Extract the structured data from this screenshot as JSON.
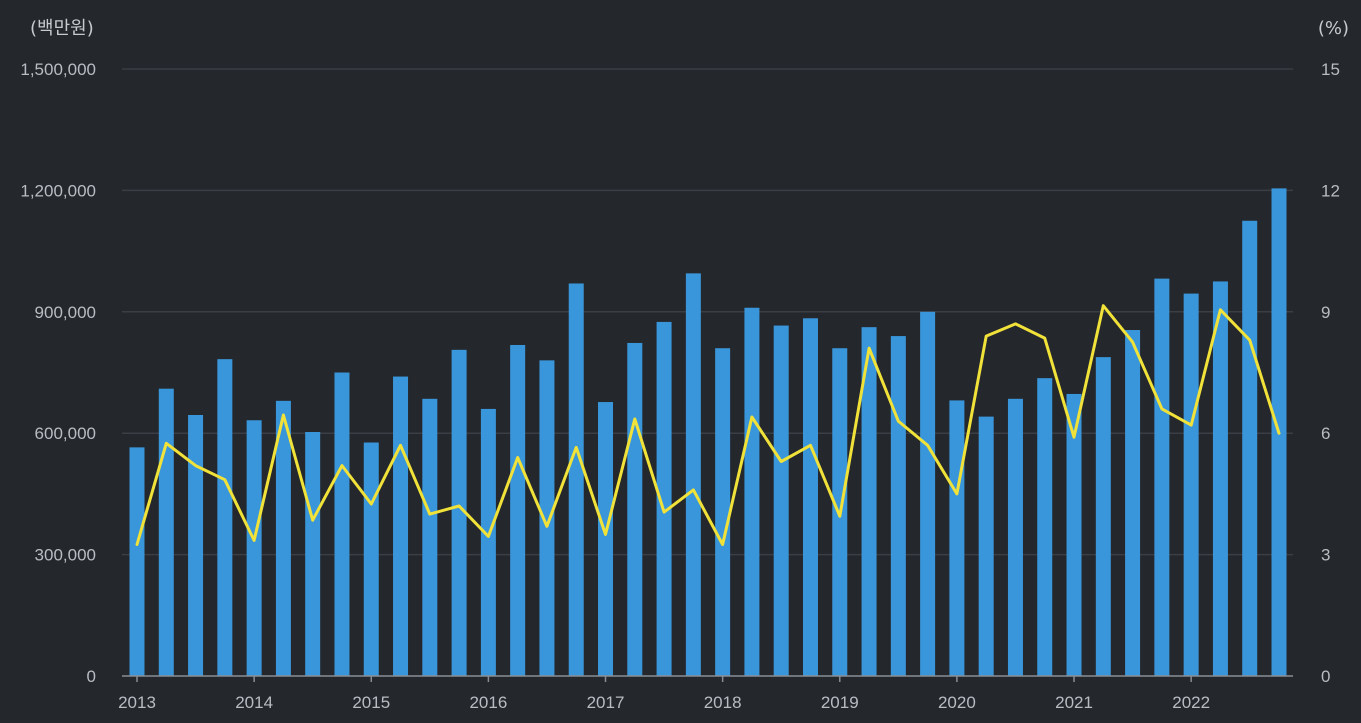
{
  "chart_data": {
    "type": "bar",
    "left_axis_unit": "(백만원)",
    "right_axis_unit": "(%)",
    "y_left_ticks": [
      "0",
      "300,000",
      "600,000",
      "900,000",
      "1,200,000",
      "1,500,000"
    ],
    "y_right_ticks": [
      "0",
      "3",
      "6",
      "9",
      "12",
      "15"
    ],
    "ylim_left": [
      0,
      1500000
    ],
    "ylim_right": [
      0,
      15
    ],
    "x_tick_labels": [
      "2013",
      "2014",
      "2015",
      "2016",
      "2017",
      "2018",
      "2019",
      "2020",
      "2021",
      "2022"
    ],
    "grid": true,
    "series": [
      {
        "type": "bar",
        "axis": "left",
        "color": "#3a96da",
        "values": [
          565000,
          710000,
          645000,
          783000,
          632000,
          680000,
          603000,
          750000,
          577000,
          740000,
          685000,
          806000,
          660000,
          818000,
          780000,
          970000,
          677000,
          823000,
          875000,
          995000,
          810000,
          910000,
          866000,
          884000,
          810000,
          862000,
          840000,
          900000,
          681000,
          641000,
          685000,
          736000,
          697000,
          788000,
          855000,
          982000,
          945000,
          975000,
          1125000,
          1205000
        ]
      },
      {
        "type": "line",
        "axis": "right",
        "color": "#f1e23a",
        "values": [
          3.25,
          5.75,
          5.2,
          4.85,
          3.35,
          6.45,
          3.85,
          5.2,
          4.25,
          5.7,
          4.0,
          4.2,
          3.45,
          5.4,
          3.7,
          5.65,
          3.5,
          6.35,
          4.05,
          4.6,
          3.25,
          6.4,
          5.3,
          5.7,
          3.95,
          8.1,
          6.3,
          5.7,
          4.5,
          8.4,
          8.7,
          8.35,
          5.9,
          9.15,
          8.25,
          6.6,
          6.2,
          9.05,
          8.3,
          6.0
        ]
      }
    ]
  }
}
